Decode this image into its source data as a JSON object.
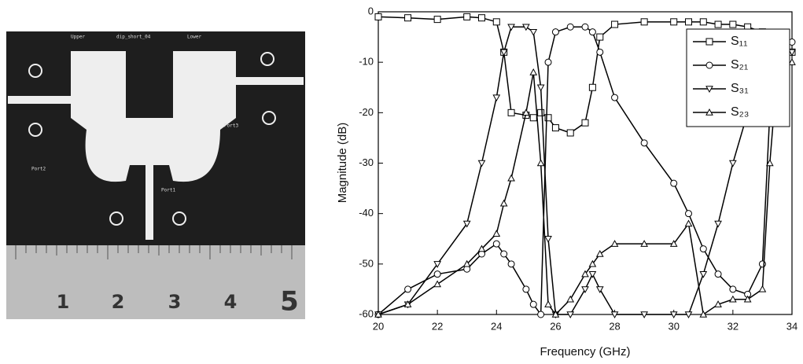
{
  "photo": {
    "labels": [
      "Upper",
      "dip_short_04",
      "Lower",
      "Port2",
      "Port3",
      "Port1"
    ],
    "ruler_labels": [
      "1",
      "2",
      "3",
      "4",
      "5"
    ]
  },
  "chart_data": {
    "type": "line",
    "x_label": "Frequency (GHz)",
    "y_label": "Magnitude  (dB)",
    "x": [
      20,
      21,
      22,
      23,
      23.5,
      24,
      24.25,
      24.5,
      25,
      25.25,
      25.5,
      25.75,
      26,
      26.5,
      27,
      27.25,
      27.5,
      28,
      29,
      30,
      30.5,
      31,
      31.5,
      32,
      32.5,
      33,
      33.25,
      33.5,
      34
    ],
    "xlim": [
      20,
      34
    ],
    "xticks": [
      20,
      22,
      24,
      26,
      28,
      30,
      32,
      34
    ],
    "ylim": [
      -60,
      0
    ],
    "yticks": [
      0,
      -10,
      -20,
      -30,
      -40,
      -50,
      -60
    ],
    "legend": "upper right",
    "series": [
      {
        "name": "S₁₁",
        "color": "#000000",
        "marker": "square",
        "values": [
          -1,
          -1.2,
          -1.5,
          -1,
          -1.2,
          -2,
          -8,
          -20,
          -20.5,
          -21,
          -20,
          -21,
          -23,
          -24,
          -22,
          -15,
          -5,
          -2.5,
          -2,
          -2,
          -2,
          -2,
          -2.5,
          -2.5,
          -3,
          -4,
          -10,
          -6,
          -8
        ]
      },
      {
        "name": "S₂₁",
        "color": "#000000",
        "marker": "circle",
        "values": [
          -60,
          -55,
          -52,
          -51,
          -48,
          -46,
          -48,
          -50,
          -55,
          -58,
          -60,
          -10,
          -4,
          -3,
          -3,
          -4,
          -8,
          -17,
          -26,
          -34,
          -40,
          -47,
          -52,
          -55,
          -56,
          -50,
          -20,
          -8,
          -6
        ]
      },
      {
        "name": "S₃₁",
        "color": "#000000",
        "marker": "triangle-down",
        "values": [
          -60,
          -58,
          -50,
          -42,
          -30,
          -17,
          -8,
          -3,
          -3,
          -4,
          -15,
          -45,
          -60,
          -60,
          -55,
          -52,
          -55,
          -60,
          -60,
          -60,
          -60,
          -52,
          -42,
          -30,
          -20,
          -10,
          -7,
          -6,
          -8
        ]
      },
      {
        "name": "S₂₃",
        "color": "#000000",
        "marker": "triangle-up",
        "values": [
          -60,
          -58,
          -54,
          -50,
          -47,
          -44,
          -38,
          -33,
          -20,
          -12,
          -30,
          -58,
          -60,
          -57,
          -52,
          -50,
          -48,
          -46,
          -46,
          -46,
          -42,
          -60,
          -58,
          -57,
          -57,
          -55,
          -30,
          -12,
          -10
        ]
      }
    ]
  }
}
